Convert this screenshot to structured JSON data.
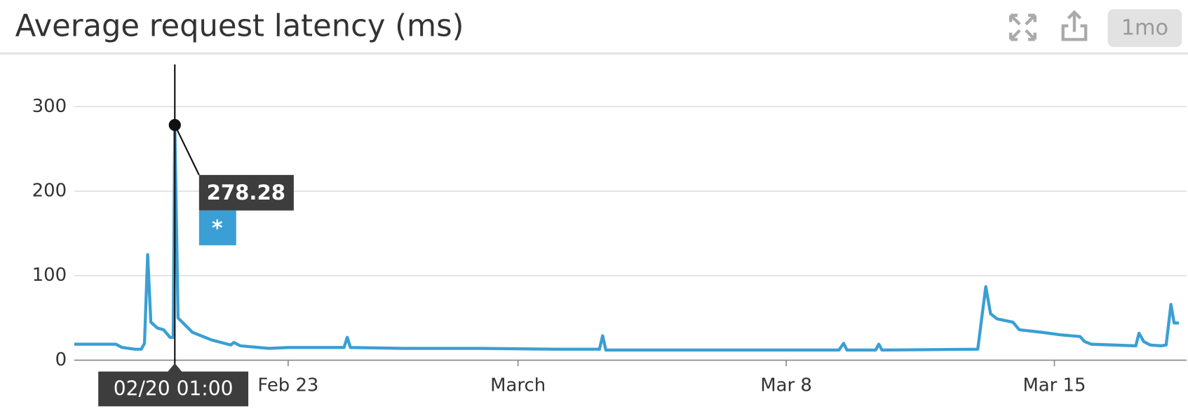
{
  "chart_data": {
    "type": "line",
    "title": "Average request latency (ms)",
    "timeframe": "1mo",
    "x": [
      "02/17 10:00",
      "02/18 12:00",
      "02/18 16:00",
      "02/19 00:00",
      "02/19 04:00",
      "02/19 06:00",
      "02/19 08:00",
      "02/19 10:00",
      "02/19 14:00",
      "02/19 18:00",
      "02/19 22:00",
      "02/20 00:00",
      "02/20 01:00",
      "02/20 03:00",
      "02/20 12:00",
      "02/21 00:00",
      "02/21 12:00",
      "02/21 14:00",
      "02/21 18:00",
      "02/22 12:00",
      "02/23 00:00",
      "02/24 11:00",
      "02/24 13:00",
      "02/24 15:00",
      "02/26 00:00",
      "02/28 00:00",
      "03/02 00:00",
      "03/03 03:00",
      "03/03 05:00",
      "03/03 07:00",
      "03/09 09:00",
      "03/09 12:00",
      "03/09 14:00",
      "03/10 08:00",
      "03/10 10:00",
      "03/10 12:00",
      "03/13 00:00",
      "03/13 05:00",
      "03/13 08:00",
      "03/13 12:00",
      "03/13 22:00",
      "03/14 02:00",
      "03/14 16:00",
      "03/15 04:00",
      "03/15 16:00",
      "03/15 19:00",
      "03/15 23:00",
      "03/17 03:00",
      "03/17 05:00",
      "03/17 08:00",
      "03/17 12:00",
      "03/17 19:00",
      "03/17 22:00",
      "03/18 01:00",
      "03/18 03:00",
      "03/18 06:00"
    ],
    "series": [
      {
        "name": "*",
        "color": "#3a9fd4",
        "values": [
          19,
          19,
          15,
          13,
          13,
          20,
          125,
          45,
          38,
          36,
          27,
          27,
          278.28,
          50,
          33,
          24,
          18,
          21,
          17,
          14,
          15,
          15,
          27,
          15,
          14,
          14,
          13,
          13,
          29,
          12,
          12,
          20,
          12,
          12,
          19,
          12,
          13,
          87,
          55,
          49,
          45,
          36,
          33,
          30,
          28,
          22,
          19,
          17,
          32,
          22,
          18,
          17,
          18,
          66,
          44,
          44
        ]
      }
    ],
    "xlim": [
      "02/17 10:00",
      "03/18 06:00"
    ],
    "xticks": [
      {
        "value": "02/23 00:00",
        "label": "Feb 23"
      },
      {
        "value": "03/01 00:00",
        "label": "March"
      },
      {
        "value": "03/08 00:00",
        "label": "Mar 8"
      },
      {
        "value": "03/15 00:00",
        "label": "Mar 15"
      }
    ],
    "ylim": [
      0,
      350
    ],
    "yticks": [
      0,
      100,
      200,
      300
    ],
    "grid": true
  }
}
